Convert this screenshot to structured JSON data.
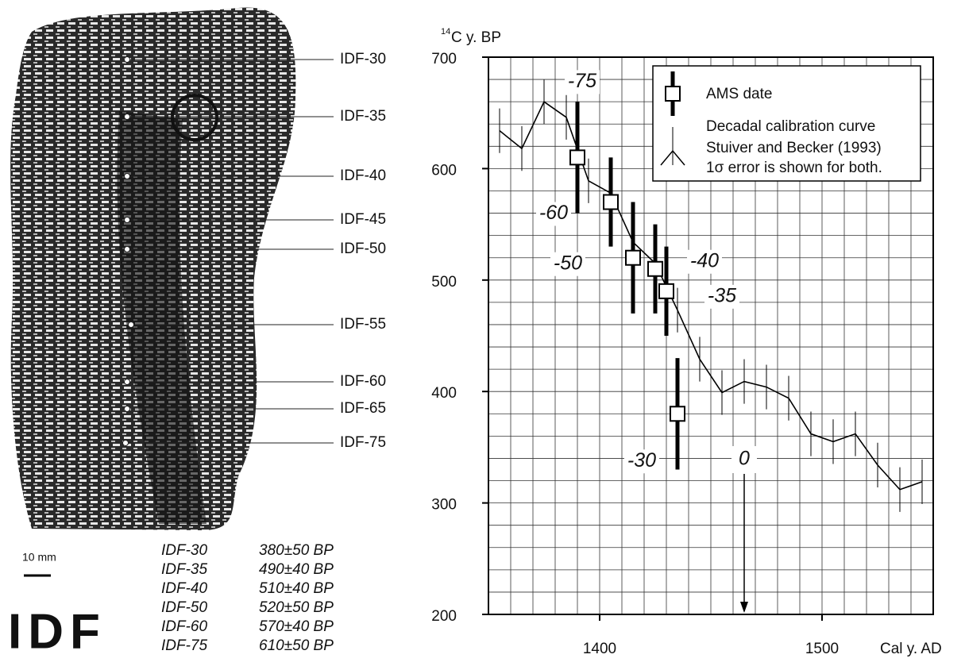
{
  "chart_data": {
    "type": "line",
    "y_label_sup": "14",
    "y_label": "C y. BP",
    "x_label": "Cal y. AD",
    "xlim": [
      1350,
      1550
    ],
    "ylim": [
      200,
      700
    ],
    "xticks": [
      1400,
      1500
    ],
    "yticks": [
      200,
      300,
      400,
      500,
      600,
      700
    ],
    "minor_xticks": [
      1350,
      1360,
      1370,
      1380,
      1390,
      1400,
      1410,
      1420,
      1430,
      1440,
      1450,
      1460,
      1470,
      1480,
      1490,
      1500,
      1510,
      1520,
      1530,
      1540,
      1550
    ],
    "minor_yticks": [
      200,
      220,
      240,
      260,
      280,
      300,
      320,
      340,
      360,
      380,
      400,
      420,
      440,
      460,
      480,
      500,
      520,
      540,
      560,
      580,
      600,
      620,
      640,
      660,
      680,
      700
    ],
    "grid": true,
    "series": [
      {
        "name": "Decadal calibration curve",
        "color": "#000000",
        "x": [
          1355,
          1365,
          1375,
          1385,
          1395,
          1405,
          1415,
          1425,
          1435,
          1445,
          1455,
          1465,
          1475,
          1485,
          1495,
          1505,
          1515,
          1525,
          1535,
          1545
        ],
        "values": [
          634,
          618,
          660,
          646,
          589,
          578,
          534,
          515,
          473,
          429,
          399,
          409,
          404,
          394,
          362,
          355,
          362,
          334,
          312,
          319
        ],
        "errors": [
          20,
          20,
          20,
          20,
          20,
          20,
          20,
          20,
          20,
          20,
          20,
          20,
          20,
          20,
          20,
          20,
          20,
          20,
          20,
          20
        ]
      },
      {
        "name": "AMS date",
        "color": "#000000",
        "x": [
          1390,
          1405,
          1415,
          1425,
          1430,
          1435
        ],
        "values": [
          610,
          570,
          520,
          510,
          490,
          380
        ],
        "errors": [
          50,
          40,
          50,
          40,
          40,
          50
        ],
        "labels": [
          "-75",
          "-60",
          "-50",
          "-40",
          "-35",
          "-30"
        ]
      }
    ],
    "legend_notes": [
      "Stuiver and Becker (1993)",
      "1σ error is shown for both."
    ],
    "legend_position": "upper right",
    "annotations": [
      {
        "text": "0",
        "x": 1465
      }
    ]
  },
  "specimen": {
    "labels": [
      "IDF-30",
      "IDF-35",
      "IDF-40",
      "IDF-45",
      "IDF-50",
      "IDF-55",
      "IDF-60",
      "IDF-65",
      "IDF-75"
    ],
    "scale_bar": "10 mm",
    "code": "IDF"
  },
  "dates_table": {
    "rows": [
      [
        "IDF-30",
        "380±50 BP"
      ],
      [
        "IDF-35",
        "490±40 BP"
      ],
      [
        "IDF-40",
        "510±40 BP"
      ],
      [
        "IDF-50",
        "520±50 BP"
      ],
      [
        "IDF-60",
        "570±40 BP"
      ],
      [
        "IDF-75",
        "610±50 BP"
      ]
    ]
  }
}
